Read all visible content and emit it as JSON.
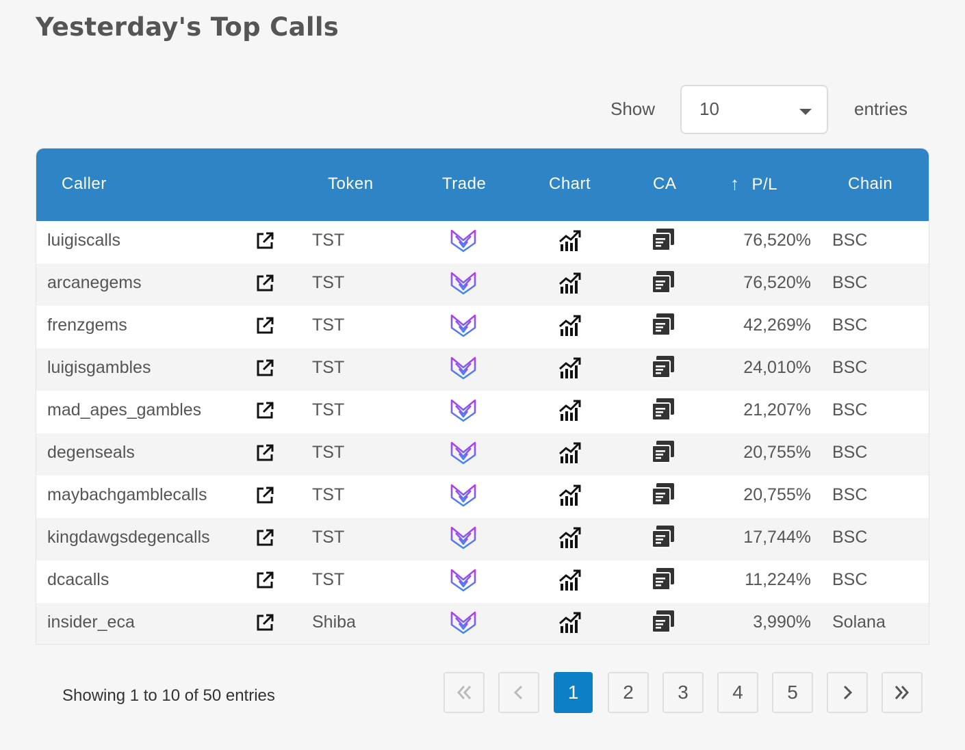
{
  "title": "Yesterday's Top Calls",
  "length_control": {
    "show_label": "Show",
    "selected": "10",
    "entries_label": "entries"
  },
  "table": {
    "headers": {
      "caller": "Caller",
      "token": "Token",
      "trade": "Trade",
      "chart": "Chart",
      "ca": "CA",
      "pl": "P/L",
      "chain": "Chain"
    },
    "sort_icon": "arrow-up-icon",
    "rows": [
      {
        "caller": "luigiscalls",
        "token": "TST",
        "pl": "76,520%",
        "chain": "BSC"
      },
      {
        "caller": "arcanegems",
        "token": "TST",
        "pl": "76,520%",
        "chain": "BSC"
      },
      {
        "caller": "frenzgems",
        "token": "TST",
        "pl": "42,269%",
        "chain": "BSC"
      },
      {
        "caller": "luigisgambles",
        "token": "TST",
        "pl": "24,010%",
        "chain": "BSC"
      },
      {
        "caller": "mad_apes_gambles",
        "token": "TST",
        "pl": "21,207%",
        "chain": "BSC"
      },
      {
        "caller": "degenseals",
        "token": "TST",
        "pl": "20,755%",
        "chain": "BSC"
      },
      {
        "caller": "maybachgamblecalls",
        "token": "TST",
        "pl": "20,755%",
        "chain": "BSC"
      },
      {
        "caller": "kingdawgsdegencalls",
        "token": "TST",
        "pl": "17,744%",
        "chain": "BSC"
      },
      {
        "caller": "dcacalls",
        "token": "TST",
        "pl": "11,224%",
        "chain": "BSC"
      },
      {
        "caller": "insider_eca",
        "token": "Shiba",
        "pl": "3,990%",
        "chain": "Solana"
      }
    ]
  },
  "info": "Showing 1 to 10 of 50 entries",
  "pagination": {
    "pages": [
      "1",
      "2",
      "3",
      "4",
      "5"
    ],
    "current": "1"
  },
  "colors": {
    "header_bg": "#2e84c5",
    "active_page": "#0d7fc6",
    "trade_icon_gradient": [
      "#b43cf0",
      "#3a8cf0"
    ]
  }
}
